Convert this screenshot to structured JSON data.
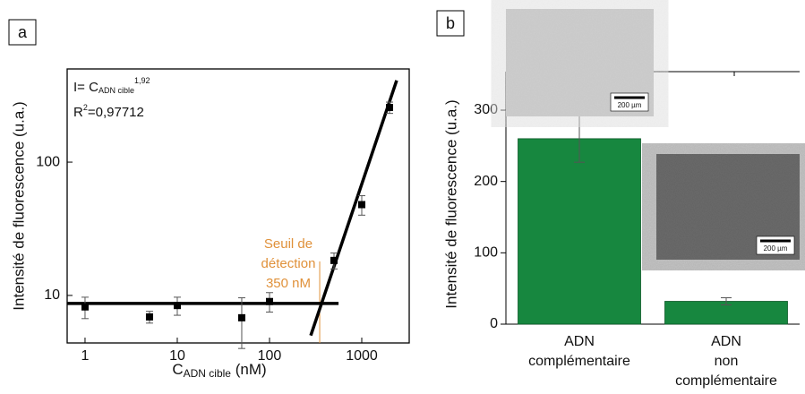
{
  "chart_data": [
    {
      "type": "scatter",
      "panel_label": "a",
      "x_label": {
        "base": "C",
        "sub": "ADN cible",
        "rest": " (nM)"
      },
      "y_label": "Intensité de fluorescence (u.a.)",
      "equation": {
        "base": "I= C",
        "sub": "ADN cible",
        "sup": "1,92"
      },
      "r2": {
        "base": "R",
        "sup": "2",
        "rest": "=0,97712"
      },
      "x": [
        1,
        5,
        10,
        50,
        100,
        500,
        1000,
        2000
      ],
      "values": [
        8.2,
        6.9,
        8.4,
        6.8,
        9.0,
        18.3,
        48,
        257
      ],
      "yerr": [
        1.5,
        0.7,
        1.3,
        2.8,
        1.5,
        2.5,
        8,
        25
      ],
      "color": "#000000",
      "fits": [
        {
          "x": [
            0.64,
            560
          ],
          "y": [
            8.7,
            8.7
          ]
        },
        {
          "x": [
            280,
            2390
          ],
          "y": [
            5,
            410
          ]
        }
      ],
      "threshold": {
        "x": 350,
        "y": 18,
        "color": "#e0913a",
        "lines": [
          "Seuil de",
          "détection",
          "350 nM"
        ]
      },
      "log_x": true,
      "log_y": true,
      "xlim": [
        0.64,
        3270
      ],
      "ylim": [
        4.4,
        500
      ],
      "xticks": [
        1,
        10,
        100,
        1000
      ],
      "yticks": [
        10,
        100
      ]
    },
    {
      "type": "bar",
      "panel_label": "b",
      "y_label": "Intensité de fluorescence (u.a.)",
      "categories": [
        [
          "ADN",
          "complémentaire"
        ],
        [
          "ADN",
          "non",
          "complémentaire"
        ]
      ],
      "values": [
        260,
        32
      ],
      "yerr": [
        33,
        5
      ],
      "color": "#17873f",
      "ylim": [
        0,
        354
      ],
      "yticks": [
        0,
        100,
        200,
        300
      ],
      "scale_bar": "200 µm"
    }
  ]
}
